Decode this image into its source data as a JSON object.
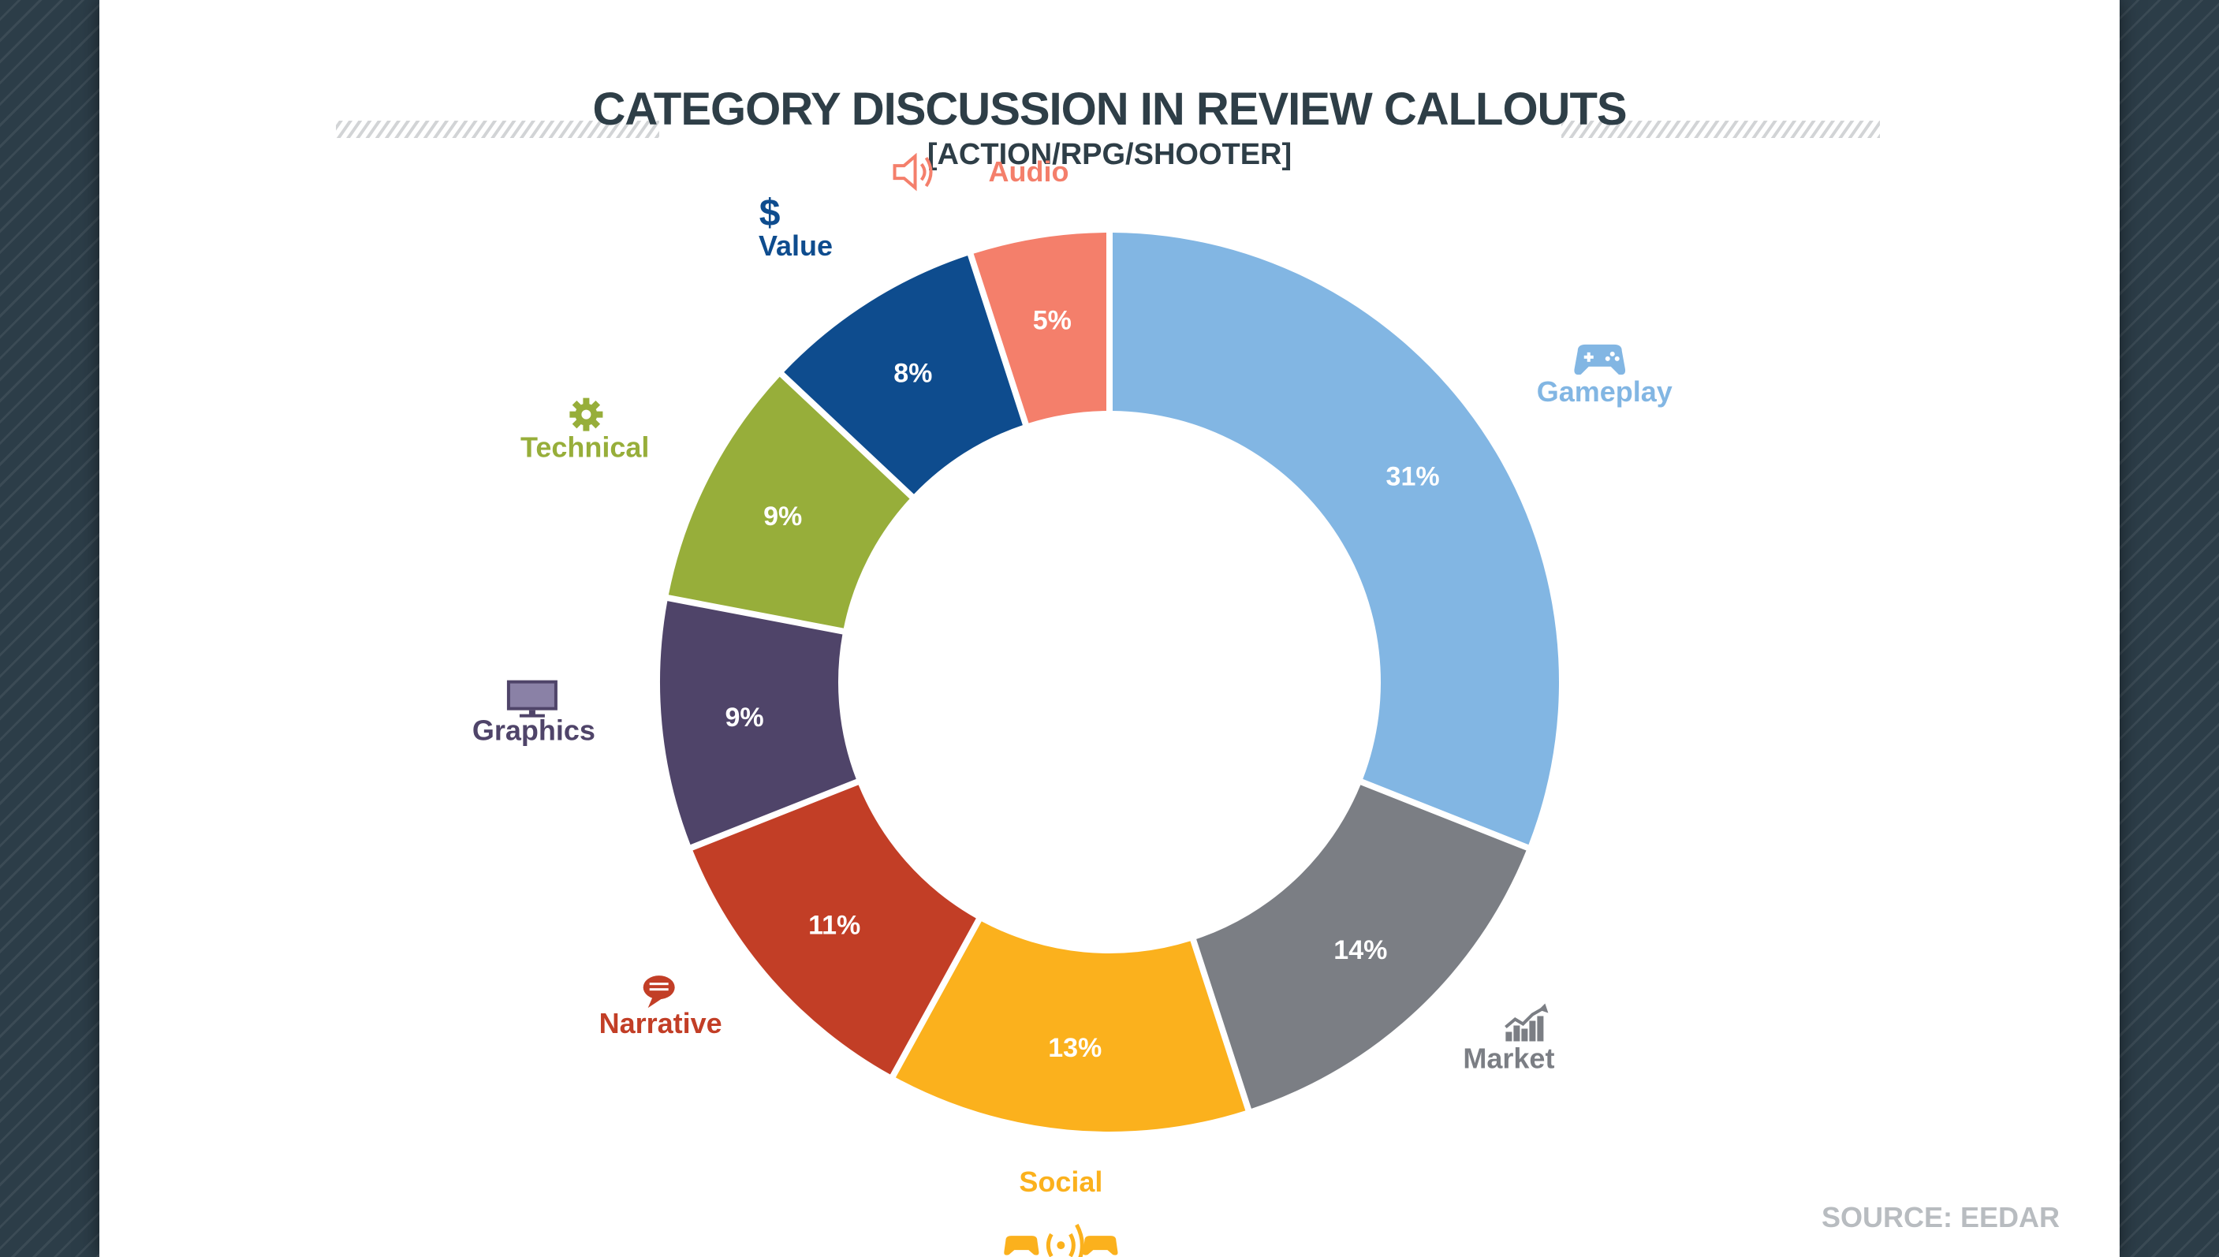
{
  "chart_data": {
    "type": "pie",
    "variant": "donut",
    "title": "CATEGORY DISCUSSION IN REVIEW CALLOUTS",
    "subtitle": "[ACTION/RPG/SHOOTER]",
    "source": "SOURCE: EEDAR",
    "slices": [
      {
        "label": "Gameplay",
        "value": 31,
        "display": "31%",
        "color": "#82b6e3",
        "icon": "gamepad-icon"
      },
      {
        "label": "Market",
        "value": 14,
        "display": "14%",
        "color": "#7b7e84",
        "icon": "trend-chart-icon"
      },
      {
        "label": "Social",
        "value": 13,
        "display": "13%",
        "color": "#fbb11d",
        "icon": "social-gamepads-icon"
      },
      {
        "label": "Narrative",
        "value": 11,
        "display": "11%",
        "color": "#c23e26",
        "icon": "speech-bubble-icon"
      },
      {
        "label": "Graphics",
        "value": 9,
        "display": "9%",
        "color": "#4f4469",
        "icon": "monitor-icon"
      },
      {
        "label": "Technical",
        "value": 9,
        "display": "9%",
        "color": "#97ae3a",
        "icon": "gear-icon"
      },
      {
        "label": "Value",
        "value": 8,
        "display": "8%",
        "color": "#0e4c8e",
        "icon": "dollar-icon"
      },
      {
        "label": "Audio",
        "value": 5,
        "display": "5%",
        "color": "#f47f6b",
        "icon": "speaker-icon"
      }
    ]
  }
}
